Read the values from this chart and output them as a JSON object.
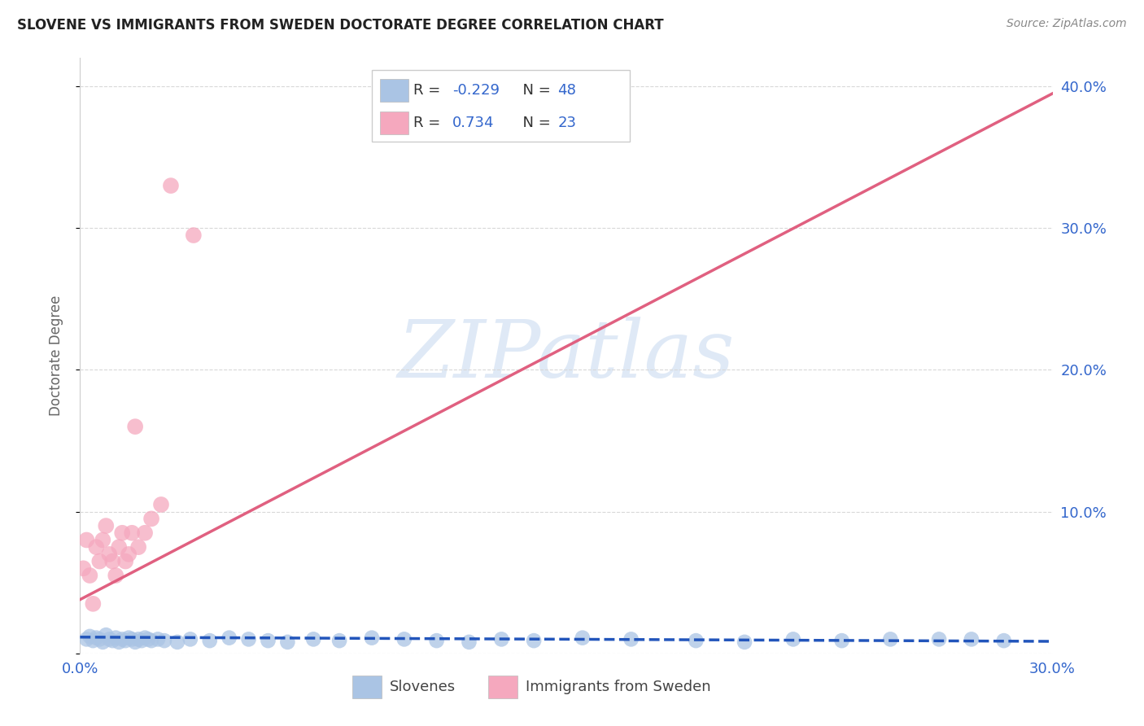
{
  "title": "SLOVENE VS IMMIGRANTS FROM SWEDEN DOCTORATE DEGREE CORRELATION CHART",
  "source": "Source: ZipAtlas.com",
  "ylabel": "Doctorate Degree",
  "xlim": [
    0.0,
    0.3
  ],
  "ylim": [
    0.0,
    0.42
  ],
  "xtick_vals": [
    0.0,
    0.1,
    0.2,
    0.3
  ],
  "xtick_labels": [
    "0.0%",
    "",
    "",
    "30.0%"
  ],
  "ytick_vals": [
    0.0,
    0.1,
    0.2,
    0.3,
    0.4
  ],
  "ytick_labels_right": [
    "",
    "10.0%",
    "20.0%",
    "30.0%",
    "40.0%"
  ],
  "background_color": "#ffffff",
  "grid_color": "#d8d8d8",
  "watermark_text": "ZIPatlas",
  "slovenes_color": "#aac4e4",
  "immigrants_color": "#f5a8be",
  "slovenes_line_color": "#2255bb",
  "immigrants_line_color": "#e06080",
  "legend_color": "#3366cc",
  "slovenes_x": [
    0.002,
    0.003,
    0.004,
    0.005,
    0.006,
    0.007,
    0.008,
    0.009,
    0.01,
    0.011,
    0.012,
    0.013,
    0.014,
    0.015,
    0.016,
    0.017,
    0.018,
    0.019,
    0.02,
    0.021,
    0.022,
    0.024,
    0.026,
    0.03,
    0.034,
    0.04,
    0.046,
    0.052,
    0.058,
    0.064,
    0.072,
    0.08,
    0.09,
    0.1,
    0.11,
    0.12,
    0.13,
    0.14,
    0.155,
    0.17,
    0.19,
    0.205,
    0.22,
    0.235,
    0.25,
    0.265,
    0.275,
    0.285
  ],
  "slovenes_y": [
    0.01,
    0.012,
    0.009,
    0.011,
    0.01,
    0.008,
    0.013,
    0.01,
    0.009,
    0.011,
    0.008,
    0.01,
    0.009,
    0.011,
    0.01,
    0.008,
    0.01,
    0.009,
    0.011,
    0.01,
    0.009,
    0.01,
    0.009,
    0.008,
    0.01,
    0.009,
    0.011,
    0.01,
    0.009,
    0.008,
    0.01,
    0.009,
    0.011,
    0.01,
    0.009,
    0.008,
    0.01,
    0.009,
    0.011,
    0.01,
    0.009,
    0.008,
    0.01,
    0.009,
    0.01,
    0.01,
    0.01,
    0.009
  ],
  "immigrants_x": [
    0.001,
    0.002,
    0.003,
    0.004,
    0.005,
    0.006,
    0.007,
    0.008,
    0.009,
    0.01,
    0.011,
    0.012,
    0.013,
    0.014,
    0.015,
    0.016,
    0.017,
    0.018,
    0.02,
    0.022,
    0.025,
    0.028,
    0.035
  ],
  "immigrants_y": [
    0.06,
    0.08,
    0.055,
    0.035,
    0.075,
    0.065,
    0.08,
    0.09,
    0.07,
    0.065,
    0.055,
    0.075,
    0.085,
    0.065,
    0.07,
    0.085,
    0.16,
    0.075,
    0.085,
    0.095,
    0.105,
    0.33,
    0.295
  ],
  "slovenes_trend_x": [
    0.0,
    0.3
  ],
  "slovenes_trend_y": [
    0.0115,
    0.0085
  ],
  "immigrants_trend_x": [
    0.0,
    0.3
  ],
  "immigrants_trend_y": [
    0.038,
    0.395
  ]
}
